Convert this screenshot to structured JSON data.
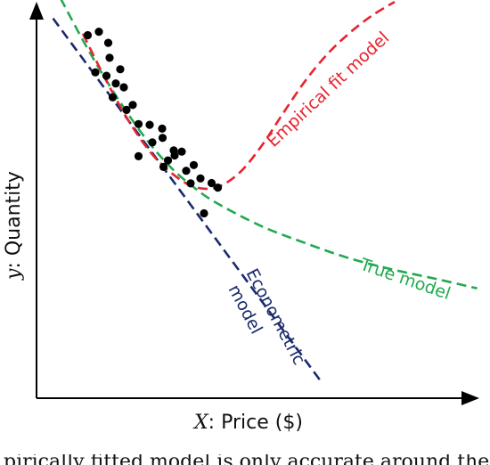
{
  "chart_data": {
    "type": "scatter",
    "xlabel_var": "X",
    "xlabel_text": ": Price ($)",
    "ylabel_var": "y",
    "ylabel_text": ": Quantity",
    "xlim": [
      0,
      10
    ],
    "ylim": [
      0,
      10
    ],
    "grid": false,
    "colors": {
      "points": "#000000",
      "econometric": "#1a2a6c",
      "true_model": "#22aa4f",
      "empirical": "#e8232f",
      "axes": "#000000"
    },
    "points": [
      {
        "x": 1.36,
        "y": 9.52
      },
      {
        "x": 1.57,
        "y": 9.23
      },
      {
        "x": 1.11,
        "y": 9.43
      },
      {
        "x": 1.6,
        "y": 8.84
      },
      {
        "x": 1.84,
        "y": 8.54
      },
      {
        "x": 1.28,
        "y": 8.46
      },
      {
        "x": 1.53,
        "y": 8.37
      },
      {
        "x": 1.92,
        "y": 8.07
      },
      {
        "x": 1.74,
        "y": 8.17
      },
      {
        "x": 1.67,
        "y": 7.81
      },
      {
        "x": 2.25,
        "y": 7.11
      },
      {
        "x": 1.98,
        "y": 7.48
      },
      {
        "x": 2.12,
        "y": 7.61
      },
      {
        "x": 2.5,
        "y": 7.09
      },
      {
        "x": 2.78,
        "y": 6.99
      },
      {
        "x": 2.56,
        "y": 6.63
      },
      {
        "x": 2.25,
        "y": 6.27
      },
      {
        "x": 2.79,
        "y": 6.75
      },
      {
        "x": 3.04,
        "y": 6.42
      },
      {
        "x": 3.22,
        "y": 6.39
      },
      {
        "x": 3.06,
        "y": 6.29
      },
      {
        "x": 2.91,
        "y": 6.16
      },
      {
        "x": 2.81,
        "y": 5.99
      },
      {
        "x": 3.49,
        "y": 6.04
      },
      {
        "x": 3.32,
        "y": 5.89
      },
      {
        "x": 3.64,
        "y": 5.69
      },
      {
        "x": 3.89,
        "y": 5.57
      },
      {
        "x": 4.03,
        "y": 5.45
      },
      {
        "x": 3.72,
        "y": 4.78
      },
      {
        "x": 3.42,
        "y": 5.56
      }
    ],
    "series": [
      {
        "name": "Econometric model",
        "style": "dashed",
        "x": [
          0.33,
          6.34
        ],
        "y": [
          9.87,
          0.4
        ]
      },
      {
        "name": "True model",
        "style": "dashed",
        "x": [
          0.5,
          1.0,
          1.5,
          2.0,
          2.5,
          3.0,
          3.5,
          4.0,
          5.0,
          6.0,
          7.0,
          8.0,
          9.0,
          9.85
        ],
        "y": [
          10.39,
          9.3,
          8.3,
          7.4,
          6.6,
          5.95,
          5.45,
          5.05,
          4.45,
          4.0,
          3.6,
          3.3,
          3.05,
          2.82
        ]
      },
      {
        "name": "Empirical fit model",
        "style": "dashed",
        "x": [
          1.0,
          1.5,
          2.0,
          2.5,
          3.0,
          3.5,
          4.0,
          4.5,
          5.0,
          5.5,
          6.0,
          6.5,
          7.0,
          7.5,
          8.0
        ],
        "y": [
          9.47,
          8.3,
          7.25,
          6.4,
          5.82,
          5.47,
          5.46,
          5.82,
          6.52,
          7.4,
          8.25,
          8.95,
          9.5,
          9.95,
          10.3
        ]
      }
    ],
    "annotations": [
      {
        "series": "Econometric model",
        "lines": [
          "Econometric",
          "model"
        ]
      },
      {
        "series": "True model",
        "lines": [
          "True model"
        ]
      },
      {
        "series": "Empirical fit model",
        "lines": [
          "Empirical fit model"
        ]
      }
    ]
  },
  "caption_fragment": "pirically fitted model is only accurate around the observ"
}
